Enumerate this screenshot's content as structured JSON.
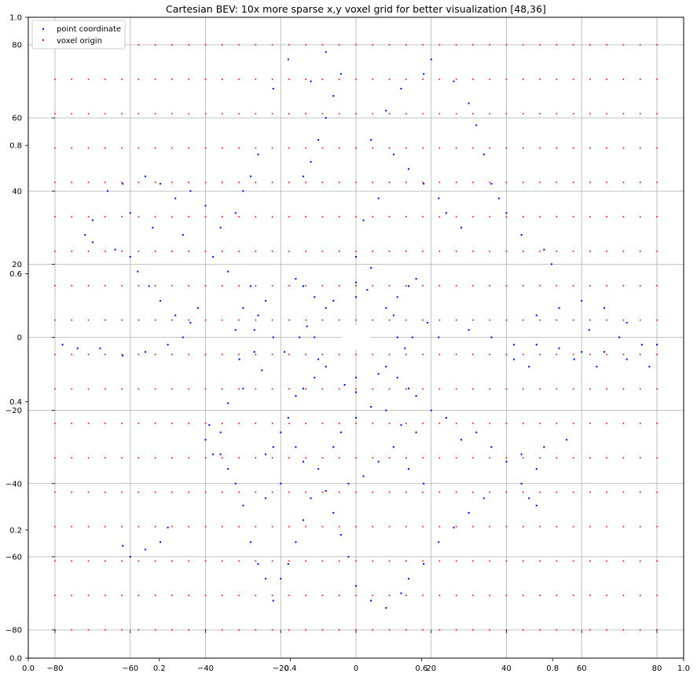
{
  "chart_data": {
    "type": "scatter",
    "title": "Cartesian BEV: 10x more sparse x,y voxel grid for better visualization [48,36]",
    "xlabel": "",
    "ylabel": "",
    "xlim": [
      -80,
      80
    ],
    "ylim": [
      -80,
      80
    ],
    "grid": true,
    "legend_position": "top-left",
    "x_ticks": [
      "−80",
      "−60",
      "−40",
      "−20",
      "0",
      "20",
      "40",
      "60",
      "80"
    ],
    "y_ticks": [
      "80",
      "60",
      "40",
      "20",
      "0",
      "−20",
      "−40",
      "−60",
      "−80"
    ],
    "secondary_x_ticks": [
      "0.0",
      "0.2",
      "0.4",
      "0.6",
      "0.8",
      "1.0"
    ],
    "secondary_y_ticks": [
      "1.0",
      "0.8",
      "0.6",
      "0.4",
      "0.2",
      "0.0"
    ],
    "series": [
      {
        "name": "point coordinate",
        "color": "#0000ff",
        "marker_size": 2,
        "points": [
          [
            0,
            11
          ],
          [
            8,
            8
          ],
          [
            11,
            0
          ],
          [
            8,
            -8
          ],
          [
            0,
            -11
          ],
          [
            -8,
            -8
          ],
          [
            -11,
            0
          ],
          [
            -8,
            8
          ],
          [
            3,
            13
          ],
          [
            10,
            6
          ],
          [
            13,
            -3
          ],
          [
            6,
            -10
          ],
          [
            -3,
            -13
          ],
          [
            -10,
            -6
          ],
          [
            -13,
            3
          ],
          [
            -6,
            10
          ],
          [
            0,
            15
          ],
          [
            11,
            11
          ],
          [
            15,
            0
          ],
          [
            11,
            -11
          ],
          [
            0,
            -15
          ],
          [
            -11,
            -11
          ],
          [
            -15,
            0
          ],
          [
            -11,
            11
          ],
          [
            4,
            19
          ],
          [
            14,
            14
          ],
          [
            19,
            4
          ],
          [
            14,
            -14
          ],
          [
            4,
            -19
          ],
          [
            -14,
            -14
          ],
          [
            -19,
            -4
          ],
          [
            -14,
            14
          ],
          [
            0,
            22
          ],
          [
            16,
            16
          ],
          [
            22,
            0
          ],
          [
            16,
            -16
          ],
          [
            0,
            -22
          ],
          [
            -16,
            -16
          ],
          [
            -22,
            0
          ],
          [
            -16,
            16
          ],
          [
            -24,
            10
          ],
          [
            -26,
            6
          ],
          [
            -27,
            2
          ],
          [
            -27,
            -4
          ],
          [
            -25,
            -9
          ],
          [
            -28,
            14
          ],
          [
            -30,
            8
          ],
          [
            -32,
            2
          ],
          [
            -31,
            -6
          ],
          [
            -30,
            -14
          ],
          [
            -34,
            -18
          ],
          [
            -36,
            -26
          ],
          [
            -40,
            -28
          ],
          [
            -38,
            -32
          ],
          [
            -39,
            -24
          ],
          [
            -42,
            8
          ],
          [
            -44,
            4
          ],
          [
            -46,
            0
          ],
          [
            -50,
            -2
          ],
          [
            -56,
            -4
          ],
          [
            -62,
            -5
          ],
          [
            -68,
            -3
          ],
          [
            -74,
            -3
          ],
          [
            -78,
            -2
          ],
          [
            -48,
            6
          ],
          [
            -52,
            10
          ],
          [
            -55,
            14
          ],
          [
            -58,
            18
          ],
          [
            -60,
            22
          ],
          [
            -64,
            24
          ],
          [
            -70,
            26
          ],
          [
            -36,
            30
          ],
          [
            -40,
            36
          ],
          [
            -44,
            40
          ],
          [
            -48,
            38
          ],
          [
            -52,
            42
          ],
          [
            -56,
            44
          ],
          [
            -62,
            42
          ],
          [
            -66,
            40
          ],
          [
            -70,
            32
          ],
          [
            -72,
            28
          ],
          [
            -60,
            34
          ],
          [
            -54,
            30
          ],
          [
            -46,
            28
          ],
          [
            -38,
            22
          ],
          [
            -34,
            18
          ],
          [
            -28,
            44
          ],
          [
            -26,
            50
          ],
          [
            -30,
            40
          ],
          [
            -32,
            34
          ],
          [
            -10,
            54
          ],
          [
            -8,
            60
          ],
          [
            -6,
            66
          ],
          [
            -4,
            72
          ],
          [
            -8,
            78
          ],
          [
            -12,
            70
          ],
          [
            -18,
            76
          ],
          [
            -22,
            68
          ],
          [
            -14,
            44
          ],
          [
            -12,
            48
          ],
          [
            4,
            54
          ],
          [
            8,
            62
          ],
          [
            12,
            68
          ],
          [
            18,
            72
          ],
          [
            20,
            76
          ],
          [
            26,
            70
          ],
          [
            30,
            64
          ],
          [
            32,
            58
          ],
          [
            34,
            50
          ],
          [
            36,
            42
          ],
          [
            38,
            38
          ],
          [
            40,
            34
          ],
          [
            44,
            28
          ],
          [
            50,
            24
          ],
          [
            52,
            20
          ],
          [
            28,
            30
          ],
          [
            24,
            34
          ],
          [
            22,
            38
          ],
          [
            18,
            42
          ],
          [
            14,
            46
          ],
          [
            10,
            50
          ],
          [
            6,
            38
          ],
          [
            2,
            32
          ],
          [
            30,
            2
          ],
          [
            36,
            0
          ],
          [
            42,
            -2
          ],
          [
            48,
            -2
          ],
          [
            54,
            -3
          ],
          [
            60,
            -4
          ],
          [
            66,
            -4
          ],
          [
            72,
            -6
          ],
          [
            78,
            -8
          ],
          [
            76,
            -2
          ],
          [
            70,
            0
          ],
          [
            62,
            2
          ],
          [
            48,
            6
          ],
          [
            54,
            8
          ],
          [
            60,
            10
          ],
          [
            66,
            8
          ],
          [
            72,
            4
          ],
          [
            80,
            -2
          ],
          [
            58,
            -6
          ],
          [
            64,
            -8
          ],
          [
            46,
            -8
          ],
          [
            42,
            -6
          ],
          [
            20,
            -20
          ],
          [
            24,
            -22
          ],
          [
            28,
            -28
          ],
          [
            32,
            -26
          ],
          [
            36,
            -30
          ],
          [
            40,
            -34
          ],
          [
            44,
            -32
          ],
          [
            48,
            -36
          ],
          [
            50,
            -30
          ],
          [
            56,
            -28
          ],
          [
            44,
            -40
          ],
          [
            46,
            -44
          ],
          [
            48,
            -46
          ],
          [
            34,
            -44
          ],
          [
            30,
            -48
          ],
          [
            26,
            -52
          ],
          [
            22,
            -56
          ],
          [
            18,
            -62
          ],
          [
            14,
            -66
          ],
          [
            12,
            -70
          ],
          [
            8,
            -74
          ],
          [
            4,
            -72
          ],
          [
            0,
            -68
          ],
          [
            -2,
            -60
          ],
          [
            -4,
            -54
          ],
          [
            -6,
            -48
          ],
          [
            -8,
            -42
          ],
          [
            -10,
            -36
          ],
          [
            -6,
            -30
          ],
          [
            -4,
            -26
          ],
          [
            -12,
            -44
          ],
          [
            -14,
            -50
          ],
          [
            -16,
            -56
          ],
          [
            -18,
            -62
          ],
          [
            -20,
            -66
          ],
          [
            -22,
            -72
          ],
          [
            -24,
            -66
          ],
          [
            -26,
            -62
          ],
          [
            -28,
            -56
          ],
          [
            -30,
            -46
          ],
          [
            -32,
            -40
          ],
          [
            -34,
            -36
          ],
          [
            -36,
            -32
          ],
          [
            -50,
            -52
          ],
          [
            -52,
            -56
          ],
          [
            -56,
            -58
          ],
          [
            -60,
            -60
          ],
          [
            -62,
            -57
          ],
          [
            8,
            -20
          ],
          [
            12,
            -24
          ],
          [
            16,
            -26
          ],
          [
            10,
            -30
          ],
          [
            6,
            -34
          ],
          [
            2,
            -38
          ],
          [
            -2,
            -40
          ],
          [
            14,
            -36
          ],
          [
            18,
            -40
          ],
          [
            -18,
            -22
          ],
          [
            -20,
            -26
          ],
          [
            -22,
            -30
          ],
          [
            -24,
            -32
          ],
          [
            -16,
            -30
          ],
          [
            -14,
            -34
          ],
          [
            -20,
            -40
          ],
          [
            -24,
            -44
          ]
        ]
      },
      {
        "name": "voxel origin",
        "color": "#ff0000",
        "marker_size": 1.5,
        "grid_rows": 18,
        "grid_cols": 37,
        "grid_x_start": -80,
        "grid_x_end": 80,
        "grid_y_start": -80,
        "grid_y_end": 80
      }
    ]
  }
}
